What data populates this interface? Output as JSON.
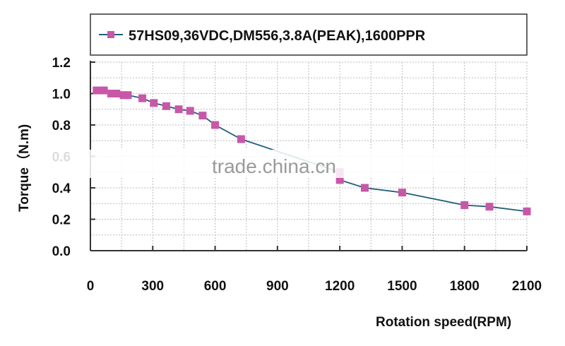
{
  "chart_data": {
    "type": "line",
    "title": "",
    "xlabel": "Rotation speed(RPM)",
    "ylabel": "Torque（N.m)",
    "xlim": [
      0,
      2100
    ],
    "ylim": [
      0,
      1.2
    ],
    "xticks": [
      "0",
      "300",
      "600",
      "900",
      "1200",
      "1500",
      "1800",
      "2100"
    ],
    "yticks": [
      "0.0",
      "0.2",
      "0.4",
      "0.6",
      "0.8",
      "1.0",
      "1.2"
    ],
    "grid": true,
    "legend_position": "top",
    "series": [
      {
        "name": "57HS09,36VDC,DM556,3.8A(PEAK),1600PPR",
        "line_color": "#1f5f7a",
        "marker_color": "#c957a8",
        "marker": "square",
        "x": [
          30,
          65,
          100,
          125,
          160,
          180,
          250,
          305,
          365,
          425,
          480,
          540,
          600,
          725,
          1200,
          1200,
          1320,
          1500,
          1800,
          1920,
          2100
        ],
        "y": [
          1.02,
          1.02,
          1.0,
          1.0,
          0.99,
          0.99,
          0.97,
          0.94,
          0.92,
          0.9,
          0.89,
          0.86,
          0.8,
          0.71,
          0.5,
          0.45,
          0.4,
          0.37,
          0.29,
          0.28,
          0.25
        ]
      }
    ]
  },
  "watermark": "trade.china.cn"
}
